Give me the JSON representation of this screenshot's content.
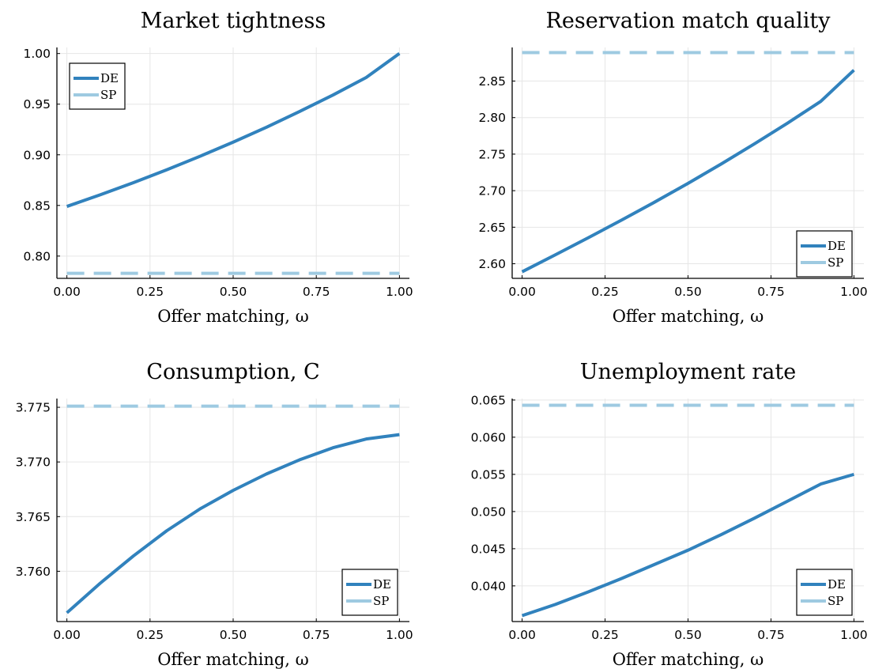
{
  "chart_data": [
    {
      "type": "line",
      "title": "Market tightness",
      "xlabel": "Offer matching, ω",
      "ylabel": "",
      "xlim": [
        -0.03,
        1.03
      ],
      "ylim": [
        0.778,
        1.006
      ],
      "xticks": [
        0.0,
        0.25,
        0.5,
        0.75,
        1.0
      ],
      "xtick_labels": [
        "0.00",
        "0.25",
        "0.50",
        "0.75",
        "1.00"
      ],
      "yticks": [
        0.8,
        0.85,
        0.9,
        0.95,
        1.0
      ],
      "ytick_labels": [
        "0.80",
        "0.85",
        "0.90",
        "0.95",
        "1.00"
      ],
      "grid": true,
      "legend_position": "top-left",
      "series": [
        {
          "name": "DE",
          "style": "solid",
          "color": "#3182bd",
          "x": [
            0,
            0.1,
            0.2,
            0.3,
            0.4,
            0.5,
            0.6,
            0.7,
            0.8,
            0.9,
            1.0
          ],
          "y": [
            0.849,
            0.8605,
            0.8725,
            0.8852,
            0.8985,
            0.9125,
            0.9272,
            0.9428,
            0.959,
            0.9763,
            1.0
          ]
        },
        {
          "name": "SP",
          "style": "dashed",
          "color": "#9ecae1",
          "x": [
            0,
            1.0
          ],
          "y": [
            0.783,
            0.783
          ]
        }
      ]
    },
    {
      "type": "line",
      "title": "Reservation match quality",
      "xlabel": "Offer matching, ω",
      "ylabel": "",
      "xlim": [
        -0.03,
        1.03
      ],
      "ylim": [
        2.58,
        2.896
      ],
      "xticks": [
        0.0,
        0.25,
        0.5,
        0.75,
        1.0
      ],
      "xtick_labels": [
        "0.00",
        "0.25",
        "0.50",
        "0.75",
        "1.00"
      ],
      "yticks": [
        2.6,
        2.65,
        2.7,
        2.75,
        2.8,
        2.85
      ],
      "ytick_labels": [
        "2.60",
        "2.65",
        "2.70",
        "2.75",
        "2.80",
        "2.85"
      ],
      "grid": true,
      "legend_position": "bottom-right",
      "series": [
        {
          "name": "DE",
          "style": "solid",
          "color": "#3182bd",
          "x": [
            0,
            0.1,
            0.2,
            0.3,
            0.4,
            0.5,
            0.6,
            0.7,
            0.8,
            0.9,
            1.0
          ],
          "y": [
            2.589,
            2.6122,
            2.6357,
            2.6598,
            2.6845,
            2.71,
            2.7365,
            2.764,
            2.7925,
            2.8222,
            2.865
          ]
        },
        {
          "name": "SP",
          "style": "dashed",
          "color": "#9ecae1",
          "x": [
            0,
            1.0
          ],
          "y": [
            2.889,
            2.889
          ]
        }
      ]
    },
    {
      "type": "line",
      "title": "Consumption, C",
      "xlabel": "Offer matching, ω",
      "ylabel": "",
      "xlim": [
        -0.03,
        1.03
      ],
      "ylim": [
        3.7554,
        3.7758
      ],
      "xticks": [
        0.0,
        0.25,
        0.5,
        0.75,
        1.0
      ],
      "xtick_labels": [
        "0.00",
        "0.25",
        "0.50",
        "0.75",
        "1.00"
      ],
      "yticks": [
        3.76,
        3.765,
        3.77,
        3.775
      ],
      "ytick_labels": [
        "3.760",
        "3.765",
        "3.770",
        "3.775"
      ],
      "grid": true,
      "legend_position": "bottom-right",
      "series": [
        {
          "name": "DE",
          "style": "solid",
          "color": "#3182bd",
          "x": [
            0,
            0.1,
            0.2,
            0.3,
            0.4,
            0.5,
            0.6,
            0.7,
            0.8,
            0.9,
            1.0
          ],
          "y": [
            3.7562,
            3.7589,
            3.7614,
            3.7637,
            3.7657,
            3.7674,
            3.7689,
            3.7702,
            3.7713,
            3.7721,
            3.7725
          ]
        },
        {
          "name": "SP",
          "style": "dashed",
          "color": "#9ecae1",
          "x": [
            0,
            1.0
          ],
          "y": [
            3.7751,
            3.7751
          ]
        }
      ]
    },
    {
      "type": "line",
      "title": "Unemployment rate",
      "xlabel": "Offer matching, ω",
      "ylabel": "",
      "xlim": [
        -0.03,
        1.03
      ],
      "ylim": [
        0.0352,
        0.0652
      ],
      "xticks": [
        0.0,
        0.25,
        0.5,
        0.75,
        1.0
      ],
      "xtick_labels": [
        "0.00",
        "0.25",
        "0.50",
        "0.75",
        "1.00"
      ],
      "yticks": [
        0.04,
        0.045,
        0.05,
        0.055,
        0.06,
        0.065
      ],
      "ytick_labels": [
        "0.040",
        "0.045",
        "0.050",
        "0.055",
        "0.060",
        "0.065"
      ],
      "grid": true,
      "legend_position": "bottom-right",
      "series": [
        {
          "name": "DE",
          "style": "solid",
          "color": "#3182bd",
          "x": [
            0,
            0.1,
            0.2,
            0.3,
            0.4,
            0.5,
            0.6,
            0.7,
            0.8,
            0.9,
            1.0
          ],
          "y": [
            0.036,
            0.0375,
            0.0392,
            0.041,
            0.0429,
            0.0448,
            0.0469,
            0.0491,
            0.0514,
            0.0537,
            0.055
          ]
        },
        {
          "name": "SP",
          "style": "dashed",
          "color": "#9ecae1",
          "x": [
            0,
            1.0
          ],
          "y": [
            0.0643,
            0.0643
          ]
        }
      ]
    }
  ]
}
